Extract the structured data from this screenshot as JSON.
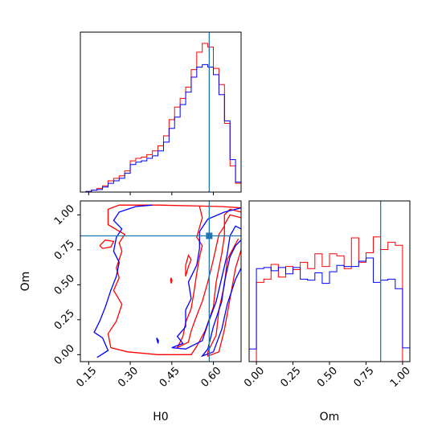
{
  "chart_data": [
    {
      "type": "histogram",
      "panel": "top-left",
      "parameter": "H0",
      "xlim": [
        0.12,
        0.7
      ],
      "truth_x": 0.585,
      "bins_x": [
        0.12,
        0.14,
        0.16,
        0.18,
        0.2,
        0.22,
        0.24,
        0.26,
        0.28,
        0.3,
        0.32,
        0.34,
        0.36,
        0.38,
        0.4,
        0.42,
        0.44,
        0.46,
        0.48,
        0.5,
        0.52,
        0.54,
        0.56,
        0.58,
        0.6,
        0.62,
        0.64,
        0.66,
        0.68,
        0.7
      ],
      "series": [
        {
          "color": "#ff0000",
          "values": [
            0,
            0.5,
            1.5,
            3,
            5,
            9,
            11,
            13,
            17,
            25,
            27,
            28,
            30,
            33,
            37,
            45,
            58,
            68,
            75,
            84,
            98,
            112,
            119,
            116,
            99,
            86,
            55,
            21,
            7
          ]
        },
        {
          "color": "#0000ff",
          "values": [
            0,
            0.5,
            1.5,
            2,
            4,
            7,
            9,
            11,
            15,
            22,
            24,
            25,
            27,
            29,
            33,
            40,
            51,
            60,
            70,
            80,
            92,
            100,
            102,
            100,
            94,
            78,
            57,
            26,
            8
          ]
        }
      ]
    },
    {
      "type": "histogram",
      "panel": "bottom-right",
      "parameter": "Om",
      "xlim": [
        -0.05,
        1.05
      ],
      "truth_x": 0.85,
      "xticks": [
        "0.00",
        "0.25",
        "0.50",
        "0.75",
        "1.00"
      ],
      "xlabel": "Om",
      "bins_x": [
        -0.05,
        0.0,
        0.05,
        0.1,
        0.15,
        0.2,
        0.25,
        0.3,
        0.35,
        0.4,
        0.45,
        0.5,
        0.55,
        0.6,
        0.65,
        0.7,
        0.75,
        0.8,
        0.85,
        0.9,
        0.95,
        1.0,
        1.05
      ],
      "series": [
        {
          "color": "#ff0000",
          "values": [
            0,
            75,
            78,
            92,
            80,
            90,
            87,
            94,
            88,
            102,
            90,
            102,
            100,
            88,
            117,
            94,
            103,
            118,
            106,
            113,
            110,
            0
          ]
        },
        {
          "color": "#0000ff",
          "values": [
            12,
            88,
            89,
            86,
            89,
            83,
            89,
            78,
            77,
            84,
            74,
            85,
            91,
            90,
            90,
            95,
            98,
            75,
            77,
            78,
            69,
            13
          ]
        }
      ]
    },
    {
      "type": "contour",
      "panel": "bottom-left",
      "x_parameter": "H0",
      "y_parameter": "Om",
      "xlim": [
        0.12,
        0.7
      ],
      "ylim": [
        -0.05,
        1.1
      ],
      "xticks": [
        "0.15",
        "0.30",
        "0.45",
        "0.60"
      ],
      "yticks": [
        "0.00",
        "0.25",
        "0.50",
        "0.75",
        "1.00"
      ],
      "xlabel": "H0",
      "ylabel": "Om",
      "truth": [
        0.585,
        0.85
      ],
      "series": [
        {
          "color": "#ff0000",
          "contours": [
            [
              [
                0.7,
                1.05
              ],
              [
                0.63,
                1.06
              ],
              [
                0.4,
                1.07
              ],
              [
                0.26,
                1.07
              ],
              [
                0.22,
                1.04
              ],
              [
                0.22,
                0.93
              ],
              [
                0.28,
                0.86
              ],
              [
                0.26,
                0.8
              ],
              [
                0.27,
                0.74
              ],
              [
                0.25,
                0.62
              ],
              [
                0.26,
                0.55
              ],
              [
                0.24,
                0.46
              ],
              [
                0.27,
                0.36
              ],
              [
                0.25,
                0.24
              ],
              [
                0.22,
                0.15
              ],
              [
                0.23,
                0.05
              ],
              [
                0.29,
                0.02
              ],
              [
                0.4,
                0.0
              ],
              [
                0.52,
                0.0
              ],
              [
                0.54,
                0.06
              ],
              [
                0.57,
                0.17
              ],
              [
                0.6,
                0.34
              ],
              [
                0.61,
                0.52
              ],
              [
                0.63,
                0.72
              ],
              [
                0.64,
                0.85
              ],
              [
                0.64,
                0.93
              ],
              [
                0.66,
                1.0
              ],
              [
                0.7,
                0.98
              ]
            ],
            [
              [
                0.7,
                1.02
              ],
              [
                0.66,
                1.04
              ],
              [
                0.64,
                1.0
              ],
              [
                0.64,
                0.92
              ],
              [
                0.62,
                0.86
              ],
              [
                0.6,
                0.68
              ],
              [
                0.58,
                0.52
              ],
              [
                0.56,
                0.38
              ],
              [
                0.54,
                0.28
              ],
              [
                0.52,
                0.17
              ],
              [
                0.51,
                0.09
              ],
              [
                0.47,
                0.05
              ],
              [
                0.49,
                0.13
              ],
              [
                0.5,
                0.23
              ],
              [
                0.52,
                0.33
              ],
              [
                0.53,
                0.45
              ],
              [
                0.54,
                0.58
              ],
              [
                0.55,
                0.7
              ],
              [
                0.56,
                0.78
              ],
              [
                0.54,
                0.84
              ],
              [
                0.56,
                0.98
              ],
              [
                0.55,
                1.06
              ]
            ],
            [
              [
                0.69,
                0.83
              ],
              [
                0.65,
                0.68
              ],
              [
                0.64,
                0.5
              ],
              [
                0.62,
                0.32
              ],
              [
                0.61,
                0.14
              ],
              [
                0.58,
                0.02
              ],
              [
                0.58,
                -0.01
              ],
              [
                0.62,
                0.02
              ],
              [
                0.64,
                0.18
              ],
              [
                0.66,
                0.4
              ],
              [
                0.68,
                0.62
              ],
              [
                0.7,
                0.75
              ]
            ],
            [
              [
                0.19,
                0.78
              ],
              [
                0.21,
                0.82
              ],
              [
                0.24,
                0.81
              ],
              [
                0.23,
                0.77
              ],
              [
                0.2,
                0.76
              ],
              [
                0.19,
                0.78
              ]
            ],
            [
              [
                0.447,
                0.55
              ],
              [
                0.451,
                0.53
              ],
              [
                0.448,
                0.51
              ],
              [
                0.446,
                0.53
              ],
              [
                0.447,
                0.55
              ]
            ],
            [
              [
                0.5,
                0.56
              ],
              [
                0.51,
                0.63
              ],
              [
                0.52,
                0.68
              ],
              [
                0.51,
                0.71
              ],
              [
                0.5,
                0.64
              ],
              [
                0.5,
                0.56
              ]
            ]
          ]
        },
        {
          "color": "#0000ff",
          "contours": [
            [
              [
                0.7,
                1.05
              ],
              [
                0.64,
                1.02
              ],
              [
                0.58,
                0.97
              ],
              [
                0.55,
                0.88
              ],
              [
                0.55,
                0.76
              ],
              [
                0.54,
                0.64
              ],
              [
                0.51,
                0.52
              ],
              [
                0.52,
                0.4
              ],
              [
                0.5,
                0.32
              ],
              [
                0.5,
                0.2
              ],
              [
                0.47,
                0.13
              ],
              [
                0.49,
                0.08
              ],
              [
                0.45,
                0.05
              ],
              [
                0.5,
                0.04
              ],
              [
                0.56,
                0.1
              ],
              [
                0.58,
                0.22
              ],
              [
                0.61,
                0.38
              ],
              [
                0.63,
                0.55
              ],
              [
                0.65,
                0.72
              ],
              [
                0.66,
                0.85
              ],
              [
                0.68,
                0.92
              ],
              [
                0.7,
                0.9
              ]
            ],
            [
              [
                0.38,
                1.07
              ],
              [
                0.32,
                1.06
              ],
              [
                0.26,
                1.02
              ],
              [
                0.24,
                0.96
              ],
              [
                0.27,
                0.9
              ],
              [
                0.25,
                0.84
              ],
              [
                0.24,
                0.74
              ],
              [
                0.26,
                0.66
              ],
              [
                0.25,
                0.56
              ],
              [
                0.23,
                0.46
              ],
              [
                0.21,
                0.34
              ],
              [
                0.19,
                0.24
              ],
              [
                0.17,
                0.16
              ],
              [
                0.2,
                0.12
              ],
              [
                0.22,
                0.03
              ],
              [
                0.18,
                -0.02
              ]
            ],
            [
              [
                0.395,
                0.12
              ],
              [
                0.4,
                0.08
              ],
              [
                0.402,
                0.1
              ],
              [
                0.395,
                0.12
              ]
            ],
            [
              [
                0.7,
                0.82
              ],
              [
                0.68,
                0.78
              ],
              [
                0.66,
                0.7
              ],
              [
                0.64,
                0.52
              ],
              [
                0.63,
                0.38
              ],
              [
                0.6,
                0.2
              ],
              [
                0.58,
                0.04
              ],
              [
                0.56,
                -0.01
              ],
              [
                0.6,
                0.02
              ],
              [
                0.63,
                0.18
              ],
              [
                0.65,
                0.36
              ],
              [
                0.68,
                0.54
              ],
              [
                0.7,
                0.62
              ]
            ]
          ]
        }
      ]
    }
  ]
}
